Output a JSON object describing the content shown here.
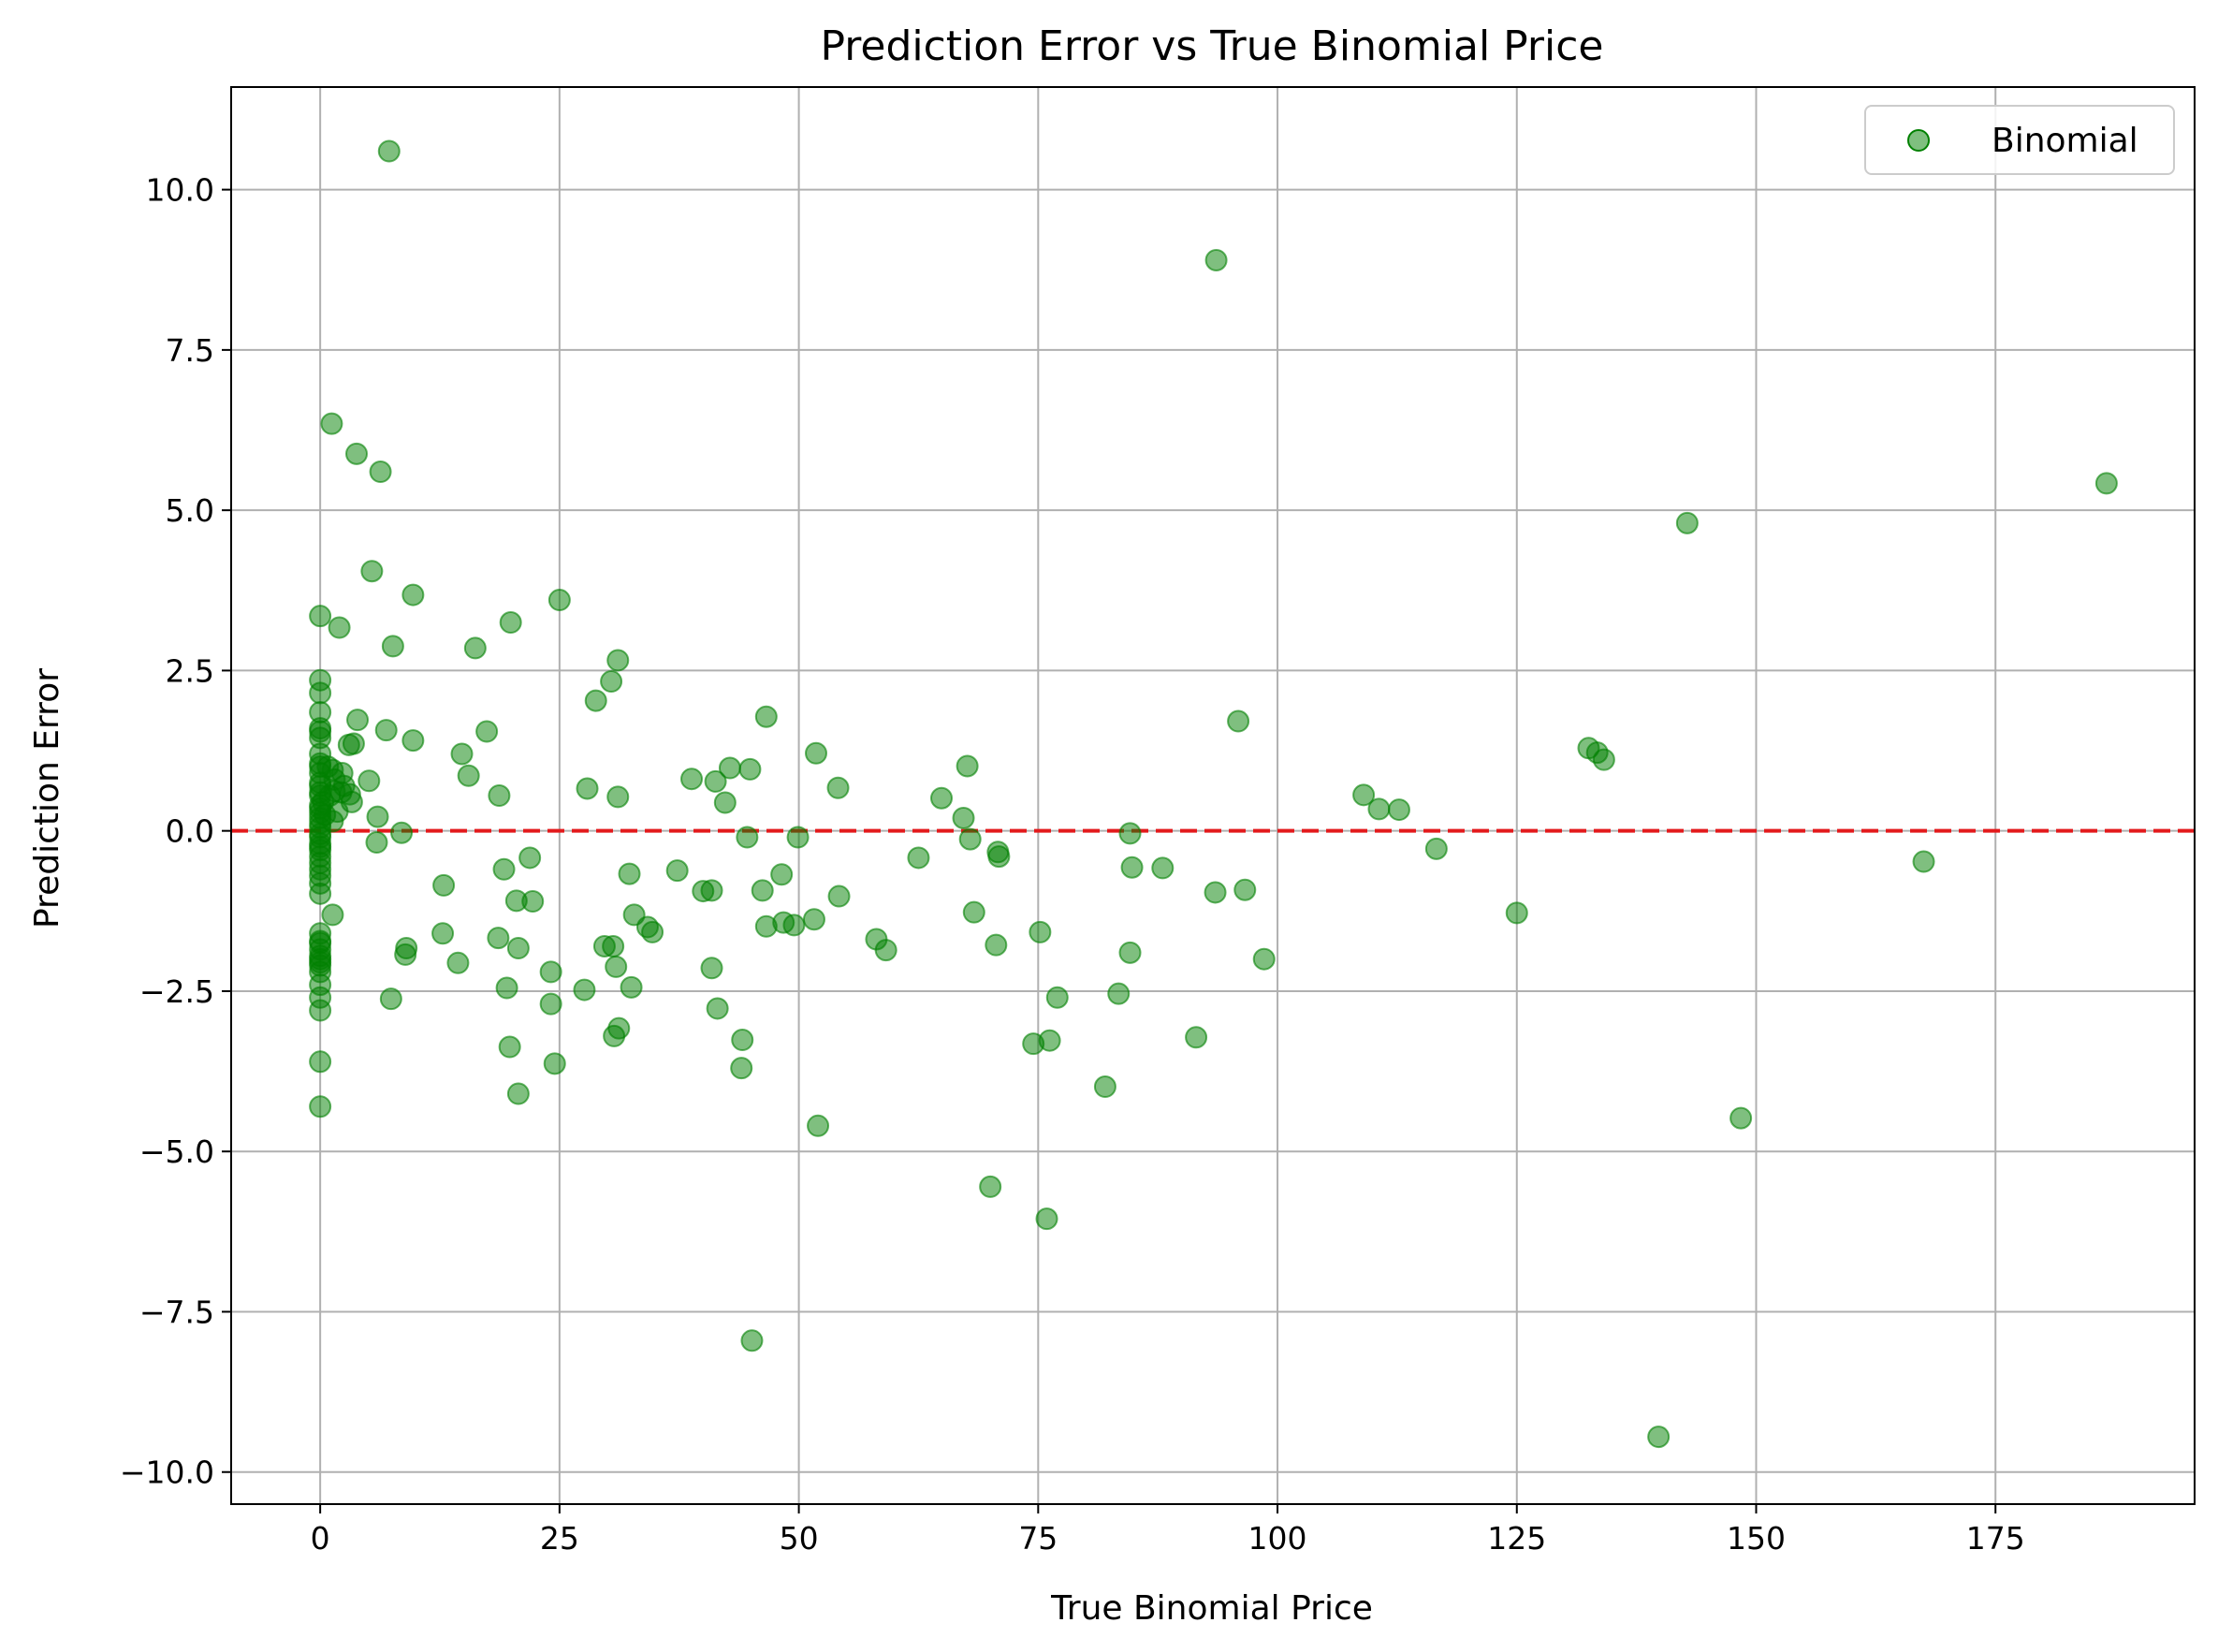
{
  "chart_data": {
    "type": "scatter",
    "title": "Prediction Error vs True Binomial Price",
    "xlabel": "True Binomial Price",
    "ylabel": "Prediction Error",
    "xlim": [
      -9.3,
      195.8
    ],
    "ylim": [
      -10.5,
      11.6
    ],
    "xticks": [
      0,
      25,
      50,
      75,
      100,
      125,
      150,
      175
    ],
    "yticks": [
      -10.0,
      -7.5,
      -5.0,
      -2.5,
      0.0,
      2.5,
      5.0,
      7.5,
      10.0
    ],
    "xtick_labels": [
      "0",
      "25",
      "50",
      "75",
      "100",
      "125",
      "150",
      "175"
    ],
    "ytick_labels": [
      "−10.0",
      "−7.5",
      "−5.0",
      "−2.5",
      "0.0",
      "2.5",
      "5.0",
      "7.5",
      "10.0"
    ],
    "grid": true,
    "legend": {
      "position": "upper right",
      "entries": [
        "Binomial"
      ]
    },
    "reference_line": {
      "y": 0,
      "color": "#e31a1c",
      "style": "dashed"
    },
    "series": [
      {
        "name": "Binomial",
        "color": "#008000",
        "points": [
          [
            7.2,
            10.6
          ],
          [
            93.6,
            8.9
          ],
          [
            1.2,
            6.35
          ],
          [
            3.8,
            5.88
          ],
          [
            6.3,
            5.6
          ],
          [
            186.6,
            5.42
          ],
          [
            142.8,
            4.8
          ],
          [
            5.4,
            4.05
          ],
          [
            9.7,
            3.68
          ],
          [
            25.0,
            3.6
          ],
          [
            0.0,
            3.35
          ],
          [
            2.0,
            3.17
          ],
          [
            19.9,
            3.25
          ],
          [
            7.6,
            2.88
          ],
          [
            16.2,
            2.85
          ],
          [
            31.1,
            2.66
          ],
          [
            30.4,
            2.33
          ],
          [
            28.8,
            2.03
          ],
          [
            0.0,
            2.35
          ],
          [
            0.0,
            2.15
          ],
          [
            0.0,
            1.85
          ],
          [
            0.0,
            1.6
          ],
          [
            0.0,
            1.45
          ],
          [
            3.9,
            1.73
          ],
          [
            6.9,
            1.57
          ],
          [
            17.4,
            1.55
          ],
          [
            9.7,
            1.41
          ],
          [
            46.6,
            1.78
          ],
          [
            95.9,
            1.71
          ],
          [
            3.0,
            1.34
          ],
          [
            3.5,
            1.36
          ],
          [
            14.8,
            1.2
          ],
          [
            51.8,
            1.21
          ],
          [
            132.5,
            1.29
          ],
          [
            133.4,
            1.22
          ],
          [
            134.1,
            1.11
          ],
          [
            0.0,
            1.2
          ],
          [
            0.0,
            1.05
          ],
          [
            67.6,
            1.01
          ],
          [
            42.8,
            0.98
          ],
          [
            44.9,
            0.96
          ],
          [
            1.3,
            0.95
          ],
          [
            2.3,
            0.9
          ],
          [
            0.0,
            0.9
          ],
          [
            15.5,
            0.86
          ],
          [
            38.8,
            0.81
          ],
          [
            41.3,
            0.77
          ],
          [
            5.1,
            0.78
          ],
          [
            0.0,
            0.75
          ],
          [
            54.1,
            0.67
          ],
          [
            27.9,
            0.66
          ],
          [
            1.5,
            0.62
          ],
          [
            3.1,
            0.57
          ],
          [
            18.7,
            0.55
          ],
          [
            31.1,
            0.53
          ],
          [
            109.0,
            0.56
          ],
          [
            0.0,
            0.55
          ],
          [
            64.9,
            0.51
          ],
          [
            3.3,
            0.45
          ],
          [
            42.3,
            0.44
          ],
          [
            0.0,
            0.4
          ],
          [
            110.6,
            0.34
          ],
          [
            112.7,
            0.33
          ],
          [
            0.0,
            0.28
          ],
          [
            6.0,
            0.22
          ],
          [
            67.2,
            0.2
          ],
          [
            1.3,
            0.15
          ],
          [
            0.0,
            0.12
          ],
          [
            0.0,
            0.05
          ],
          [
            8.5,
            -0.03
          ],
          [
            0.0,
            -0.05
          ],
          [
            84.6,
            -0.04
          ],
          [
            44.6,
            -0.1
          ],
          [
            49.9,
            -0.1
          ],
          [
            67.9,
            -0.13
          ],
          [
            5.9,
            -0.18
          ],
          [
            0.0,
            -0.2
          ],
          [
            116.6,
            -0.28
          ],
          [
            0.0,
            -0.3
          ],
          [
            70.8,
            -0.33
          ],
          [
            70.9,
            -0.4
          ],
          [
            21.9,
            -0.42
          ],
          [
            62.5,
            -0.42
          ],
          [
            167.5,
            -0.48
          ],
          [
            0.0,
            -0.5
          ],
          [
            84.8,
            -0.57
          ],
          [
            88.0,
            -0.58
          ],
          [
            19.2,
            -0.6
          ],
          [
            37.3,
            -0.62
          ],
          [
            32.3,
            -0.67
          ],
          [
            48.2,
            -0.68
          ],
          [
            0.0,
            -0.7
          ],
          [
            12.9,
            -0.85
          ],
          [
            0.0,
            -0.82
          ],
          [
            46.2,
            -0.93
          ],
          [
            93.5,
            -0.96
          ],
          [
            96.6,
            -0.92
          ],
          [
            40.0,
            -0.94
          ],
          [
            40.9,
            -0.93
          ],
          [
            0.0,
            -0.98
          ],
          [
            54.2,
            -1.02
          ],
          [
            20.5,
            -1.09
          ],
          [
            22.2,
            -1.1
          ],
          [
            68.3,
            -1.27
          ],
          [
            125.0,
            -1.28
          ],
          [
            32.8,
            -1.31
          ],
          [
            1.3,
            -1.31
          ],
          [
            51.6,
            -1.38
          ],
          [
            48.4,
            -1.43
          ],
          [
            46.6,
            -1.49
          ],
          [
            34.2,
            -1.5
          ],
          [
            49.5,
            -1.47
          ],
          [
            34.7,
            -1.58
          ],
          [
            75.2,
            -1.58
          ],
          [
            12.8,
            -1.6
          ],
          [
            0.0,
            -1.6
          ],
          [
            18.6,
            -1.67
          ],
          [
            58.1,
            -1.69
          ],
          [
            0.0,
            -1.72
          ],
          [
            70.6,
            -1.78
          ],
          [
            30.6,
            -1.8
          ],
          [
            29.7,
            -1.8
          ],
          [
            9.0,
            -1.83
          ],
          [
            20.7,
            -1.83
          ],
          [
            0.0,
            -1.85
          ],
          [
            59.1,
            -1.86
          ],
          [
            8.9,
            -1.93
          ],
          [
            84.6,
            -1.9
          ],
          [
            98.6,
            -2.0
          ],
          [
            0.0,
            -2.0
          ],
          [
            14.4,
            -2.06
          ],
          [
            0.0,
            -2.05
          ],
          [
            0.0,
            -2.1
          ],
          [
            30.9,
            -2.12
          ],
          [
            40.9,
            -2.14
          ],
          [
            24.1,
            -2.2
          ],
          [
            0.0,
            -2.4
          ],
          [
            19.5,
            -2.45
          ],
          [
            27.6,
            -2.48
          ],
          [
            32.5,
            -2.44
          ],
          [
            83.4,
            -2.54
          ],
          [
            77.0,
            -2.6
          ],
          [
            0.0,
            -2.6
          ],
          [
            7.4,
            -2.62
          ],
          [
            24.1,
            -2.7
          ],
          [
            41.5,
            -2.77
          ],
          [
            0.0,
            -2.8
          ],
          [
            31.2,
            -3.08
          ],
          [
            30.7,
            -3.2
          ],
          [
            91.5,
            -3.22
          ],
          [
            44.1,
            -3.26
          ],
          [
            76.2,
            -3.27
          ],
          [
            74.5,
            -3.32
          ],
          [
            19.8,
            -3.37
          ],
          [
            0.0,
            -3.6
          ],
          [
            24.5,
            -3.63
          ],
          [
            44.0,
            -3.7
          ],
          [
            82.0,
            -3.99
          ],
          [
            20.7,
            -4.1
          ],
          [
            0.0,
            -4.3
          ],
          [
            148.4,
            -4.48
          ],
          [
            52.0,
            -4.6
          ],
          [
            70.0,
            -5.55
          ],
          [
            75.9,
            -6.05
          ],
          [
            45.1,
            -7.95
          ],
          [
            139.8,
            -9.45
          ],
          [
            0.0,
            0.7
          ],
          [
            0.0,
            0.35
          ],
          [
            0.0,
            0.2
          ],
          [
            0.0,
            -0.1
          ],
          [
            0.0,
            -0.4
          ],
          [
            0.0,
            -0.6
          ],
          [
            0.0,
            -1.75
          ],
          [
            0.0,
            -1.95
          ],
          [
            0.0,
            -2.2
          ],
          [
            0.0,
            1.0
          ],
          [
            0.0,
            1.55
          ],
          [
            0.0,
            0.6
          ],
          [
            0.0,
            -0.25
          ],
          [
            1.5,
            0.8
          ],
          [
            2.5,
            0.7
          ],
          [
            1.0,
            0.55
          ],
          [
            1.8,
            0.3
          ],
          [
            0.5,
            0.25
          ],
          [
            2.2,
            0.6
          ],
          [
            0.8,
            1.0
          ],
          [
            0.3,
            0.45
          ]
        ]
      }
    ]
  }
}
